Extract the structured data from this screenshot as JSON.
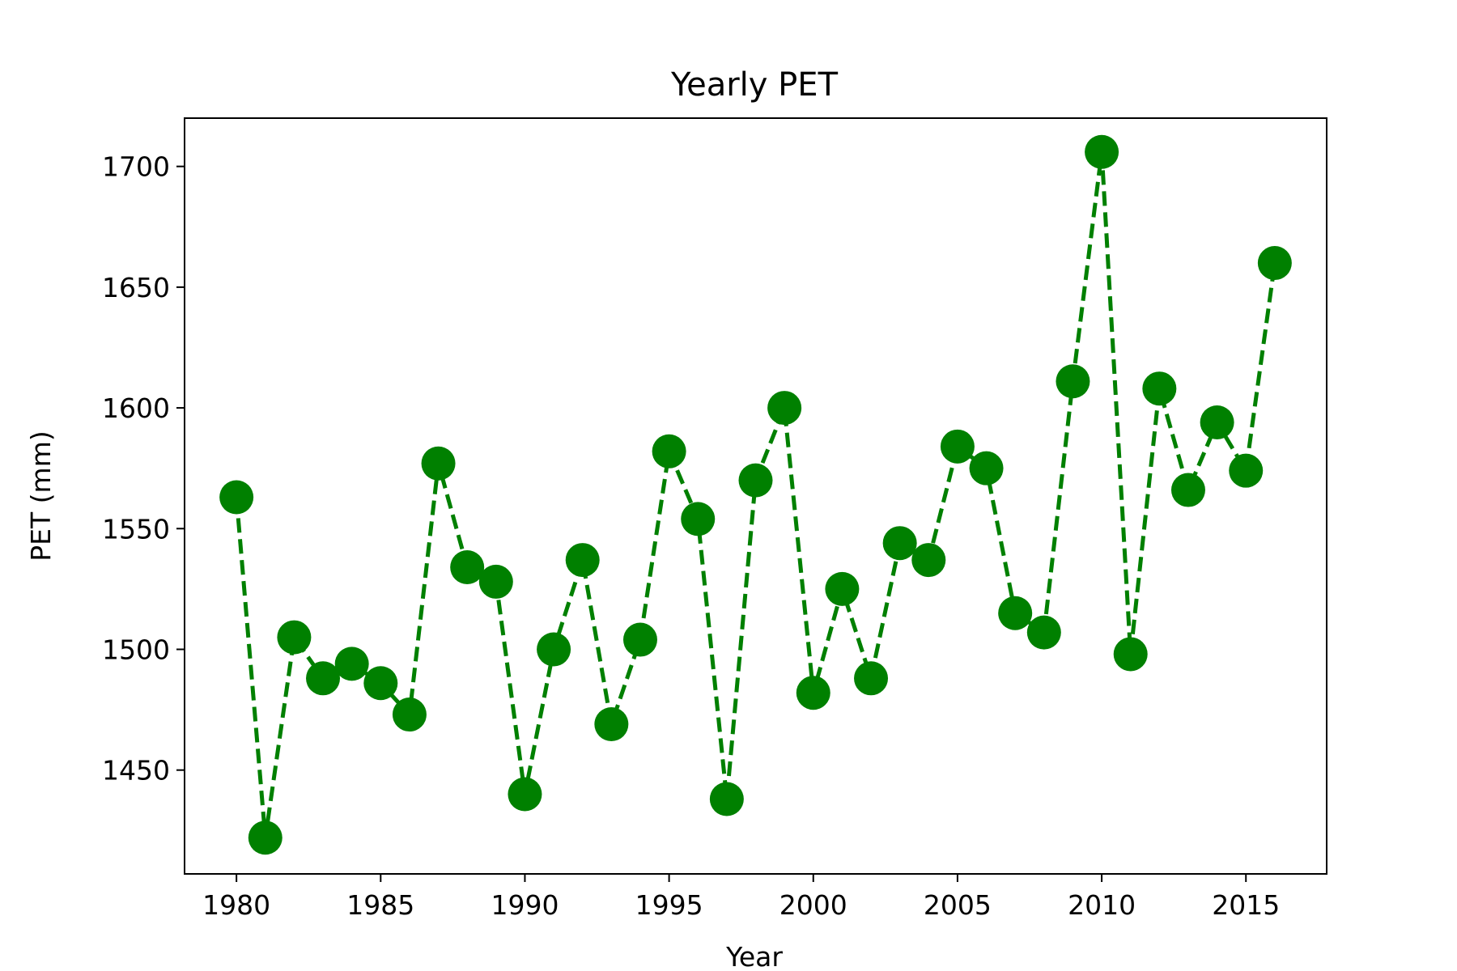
{
  "chart_data": {
    "type": "line",
    "title": "Yearly PET",
    "xlabel": "Year",
    "ylabel": "PET (mm)",
    "xlim": [
      1978.2,
      2017.8
    ],
    "ylim": [
      1407,
      1720
    ],
    "xticks": [
      1980,
      1985,
      1990,
      1995,
      2000,
      2005,
      2010,
      2015
    ],
    "yticks": [
      1450,
      1500,
      1550,
      1600,
      1650,
      1700
    ],
    "grid": false,
    "legend": "none",
    "series": [
      {
        "color": "#008000",
        "line_style": "dashed",
        "marker": "circle",
        "x": [
          1980,
          1981,
          1982,
          1983,
          1984,
          1985,
          1986,
          1987,
          1988,
          1989,
          1990,
          1991,
          1992,
          1993,
          1994,
          1995,
          1996,
          1997,
          1998,
          1999,
          2000,
          2001,
          2002,
          2003,
          2004,
          2005,
          2006,
          2007,
          2008,
          2009,
          2010,
          2011,
          2012,
          2013,
          2014,
          2015,
          2016
        ],
        "values": [
          1563,
          1422,
          1505,
          1488,
          1494,
          1486,
          1473,
          1577,
          1534,
          1528,
          1440,
          1500,
          1537,
          1469,
          1504,
          1582,
          1554,
          1438,
          1570,
          1600,
          1482,
          1525,
          1488,
          1544,
          1537,
          1584,
          1575,
          1515,
          1507,
          1611,
          1706,
          1498,
          1608,
          1566,
          1594,
          1574,
          1660
        ]
      }
    ]
  }
}
